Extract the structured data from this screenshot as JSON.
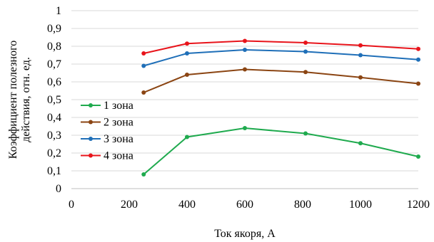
{
  "chart_data": {
    "type": "line",
    "title": "",
    "xlabel": "Ток якоря, А",
    "ylabel": "Коэффициент полезного действия, отн. ед.",
    "ylabel_lines": [
      "Коэффициент полезного",
      "действия, отн. ед."
    ],
    "xlim": [
      0,
      1200
    ],
    "ylim": [
      0,
      1
    ],
    "xticks": [
      0,
      200,
      400,
      600,
      800,
      1000,
      1200
    ],
    "xtick_labels": [
      "0",
      "200",
      "400",
      "600",
      "800",
      "1000",
      "1200"
    ],
    "yticks": [
      0,
      0.1,
      0.2,
      0.3,
      0.4,
      0.5,
      0.6,
      0.7,
      0.8,
      0.9,
      1
    ],
    "ytick_labels": [
      "0",
      "0,1",
      "0,2",
      "0,3",
      "0,4",
      "0,5",
      "0,6",
      "0,7",
      "0,8",
      "0,9",
      "1"
    ],
    "grid": "horizontal",
    "legend_position": "left-middle",
    "series": [
      {
        "name": "1 зона",
        "color": "#1faa4e",
        "x": [
          250,
          400,
          600,
          810,
          1000,
          1200
        ],
        "y": [
          0.08,
          0.29,
          0.34,
          0.31,
          0.255,
          0.18
        ]
      },
      {
        "name": "2 зона",
        "color": "#8b4513",
        "x": [
          250,
          400,
          600,
          810,
          1000,
          1200
        ],
        "y": [
          0.54,
          0.64,
          0.67,
          0.655,
          0.625,
          0.59
        ]
      },
      {
        "name": "3 зона",
        "color": "#1f6fb8",
        "x": [
          250,
          400,
          600,
          810,
          1000,
          1200
        ],
        "y": [
          0.69,
          0.76,
          0.78,
          0.77,
          0.75,
          0.725
        ]
      },
      {
        "name": "4 зона",
        "color": "#e8141b",
        "x": [
          250,
          400,
          600,
          810,
          1000,
          1200
        ],
        "y": [
          0.76,
          0.815,
          0.83,
          0.82,
          0.805,
          0.785
        ]
      }
    ]
  }
}
